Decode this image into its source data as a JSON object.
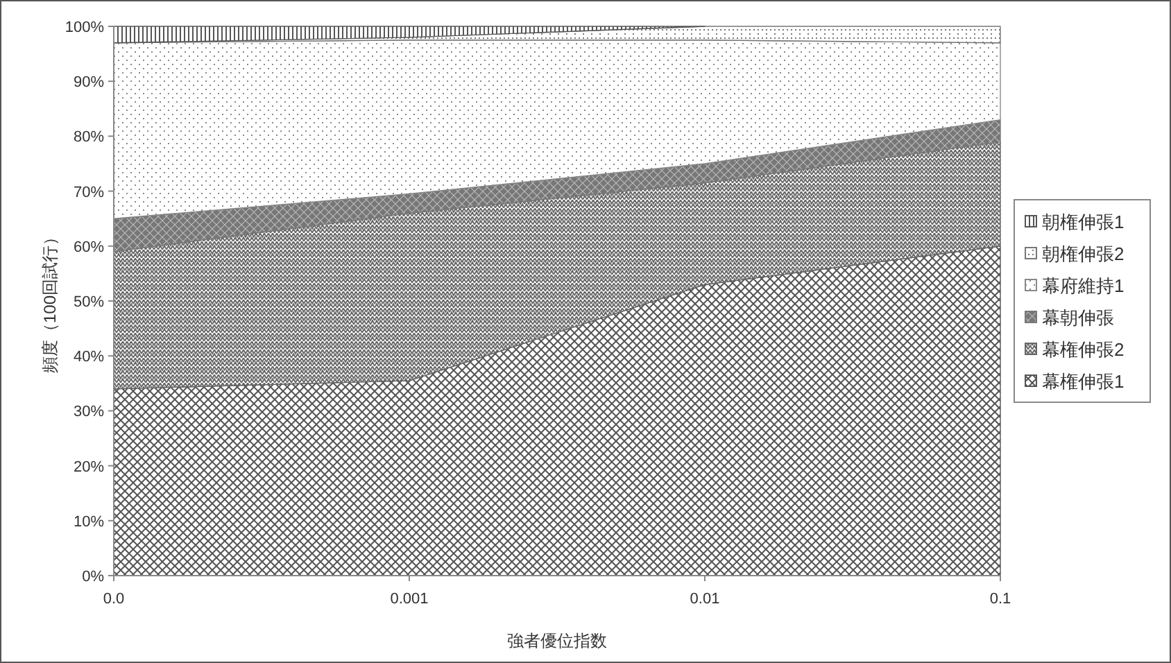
{
  "chart_data": {
    "type": "area",
    "stacked": true,
    "xlabel": "強者優位指数",
    "ylabel": "頻度（100回試行）",
    "categories": [
      "0.0",
      "0.001",
      "0.01",
      "0.1"
    ],
    "series": [
      {
        "name": "幕権伸張1",
        "color": "#555555",
        "values": [
          34,
          35.5,
          53,
          60
        ]
      },
      {
        "name": "幕権伸張2",
        "color": "#666666",
        "values": [
          25,
          30.5,
          18.5,
          19
        ]
      },
      {
        "name": "幕朝伸張",
        "color": "#777777",
        "values": [
          6,
          3.5,
          3.5,
          4
        ]
      },
      {
        "name": "幕府維持1",
        "color": "#888888",
        "values": [
          32,
          28,
          22.5,
          14
        ]
      },
      {
        "name": "朝権伸張2",
        "color": "#777777",
        "values": [
          0,
          0.5,
          2.5,
          3
        ]
      },
      {
        "name": "朝権伸張1",
        "color": "#555555",
        "values": [
          3,
          2,
          0,
          null
        ]
      }
    ],
    "ylim": [
      0,
      100
    ],
    "yticks": [
      {
        "value": 0,
        "label": "0%"
      },
      {
        "value": 10,
        "label": "10%"
      },
      {
        "value": 20,
        "label": "20%"
      },
      {
        "value": 30,
        "label": "30%"
      },
      {
        "value": 40,
        "label": "40%"
      },
      {
        "value": 50,
        "label": "50%"
      },
      {
        "value": 60,
        "label": "60%"
      },
      {
        "value": 70,
        "label": "70%"
      },
      {
        "value": 80,
        "label": "80%"
      },
      {
        "value": 90,
        "label": "90%"
      },
      {
        "value": 100,
        "label": "100%"
      }
    ],
    "legend": "right",
    "grid": false
  }
}
